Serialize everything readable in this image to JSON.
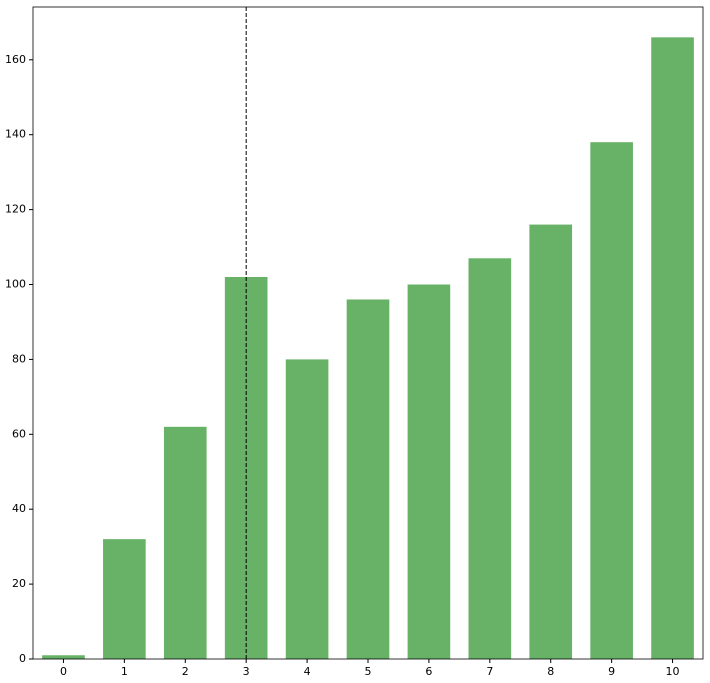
{
  "chart_data": {
    "type": "bar",
    "x": [
      0,
      1,
      2,
      3,
      4,
      5,
      6,
      7,
      8,
      9,
      10
    ],
    "values": [
      1,
      32,
      62,
      102,
      80,
      96,
      100,
      107,
      116,
      138,
      166
    ],
    "color": "#67b267",
    "xlim": [
      -0.5,
      10.5
    ],
    "xticks": [
      0,
      1,
      2,
      3,
      4,
      5,
      6,
      7,
      8,
      9,
      10
    ],
    "ylim": [
      0,
      174.1
    ],
    "yticks": [
      0,
      20,
      40,
      60,
      80,
      100,
      120,
      140,
      160
    ],
    "vline": 3,
    "grid": false
  }
}
